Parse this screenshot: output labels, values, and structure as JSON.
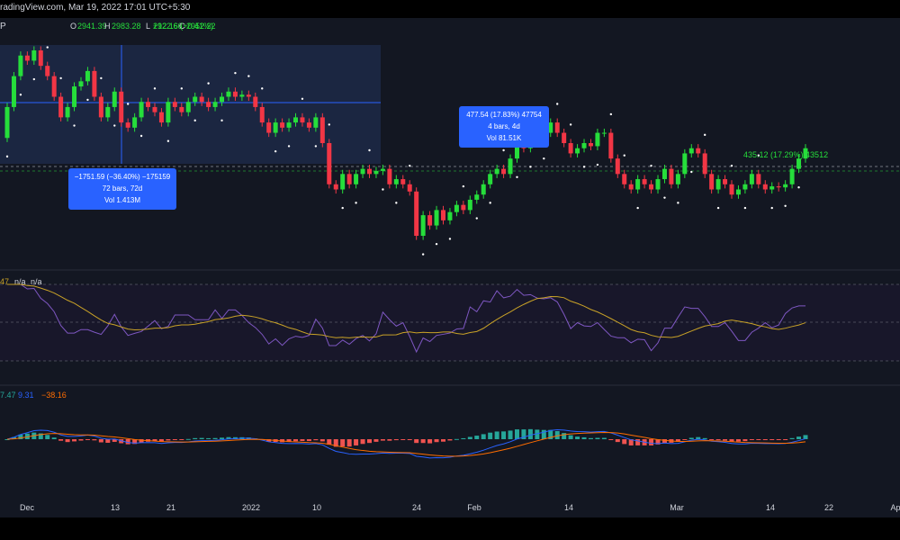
{
  "header": {
    "source": "radingView.com, Mar 19, 2022 17:01 UTC+5:30",
    "symbol_fragment": "P",
    "ohlc": [
      {
        "key": "O",
        "value": "2941.39"
      },
      {
        "key": "H",
        "value": "2983.28"
      },
      {
        "key": "L",
        "value": "2922.66"
      },
      {
        "key": "C",
        "value": "2952.22"
      }
    ],
    "change": "+12.16 (+0.41%)"
  },
  "colors": {
    "background": "#131722",
    "up": "#26de3b",
    "down": "#f23645",
    "rsi_line": "#7e57c2",
    "rsi_ma": "#c9a227",
    "macd_line": "#2962ff",
    "signal_line": "#ff6d00",
    "measure_box": "#2962ff"
  },
  "measurements": [
    {
      "line1": "−1751.59 (−36.40%) −175159",
      "line2": "72 bars, 72d",
      "line3": "Vol 1.413M"
    },
    {
      "line1": "477.54 (17.83%) 47754",
      "line2": "4 bars, 4d",
      "line3": "Vol 81.51K"
    },
    {
      "line1": "435.12 (17.29%) 43512",
      "line2": "",
      "line3": ""
    }
  ],
  "rsi_legend": {
    "value": "47",
    "na1": "n/a",
    "na2": "n/a"
  },
  "macd_legend": {
    "hist": "7.47",
    "macd": "9.31",
    "signal": "−38.16"
  },
  "chart_data": {
    "type": "candlestick",
    "x_tick_labels": [
      "Dec",
      "13",
      "21",
      "2022",
      "10",
      "24",
      "Feb",
      "14",
      "Mar",
      "14",
      "22",
      "Ap"
    ],
    "candles": [
      [
        2900,
        3200
      ],
      [
        3200,
        3500
      ],
      [
        3500,
        3700
      ],
      [
        3700,
        3650
      ],
      [
        3650,
        3750
      ],
      [
        3750,
        3600
      ],
      [
        3600,
        3500
      ],
      [
        3500,
        3300
      ],
      [
        3300,
        3100
      ],
      [
        3100,
        3200
      ],
      [
        3200,
        3400
      ],
      [
        3400,
        3450
      ],
      [
        3450,
        3550
      ],
      [
        3550,
        3300
      ],
      [
        3300,
        3100
      ],
      [
        3100,
        3200
      ],
      [
        3200,
        3350
      ],
      [
        3350,
        3050
      ],
      [
        3050,
        3000
      ],
      [
        3000,
        3100
      ],
      [
        3100,
        3250
      ],
      [
        3250,
        3200
      ],
      [
        3200,
        3150
      ],
      [
        3150,
        3050
      ],
      [
        3050,
        3250
      ],
      [
        3250,
        3200
      ],
      [
        3200,
        3150
      ],
      [
        3150,
        3250
      ],
      [
        3250,
        3300
      ],
      [
        3300,
        3250
      ],
      [
        3250,
        3200
      ],
      [
        3200,
        3250
      ],
      [
        3250,
        3300
      ],
      [
        3300,
        3350
      ],
      [
        3350,
        3300
      ],
      [
        3300,
        3320
      ],
      [
        3320,
        3300
      ],
      [
        3300,
        3200
      ],
      [
        3200,
        3050
      ],
      [
        3050,
        2950
      ],
      [
        2950,
        3050
      ],
      [
        3050,
        3000
      ],
      [
        3000,
        3050
      ],
      [
        3050,
        3100
      ],
      [
        3100,
        3050
      ],
      [
        3050,
        3000
      ],
      [
        3000,
        3100
      ],
      [
        3100,
        2850
      ],
      [
        2850,
        2450
      ],
      [
        2450,
        2400
      ],
      [
        2400,
        2550
      ],
      [
        2550,
        2450
      ],
      [
        2450,
        2550
      ],
      [
        2550,
        2600
      ],
      [
        2600,
        2550
      ],
      [
        2550,
        2580
      ],
      [
        2580,
        2600
      ],
      [
        2600,
        2450
      ],
      [
        2450,
        2500
      ],
      [
        2500,
        2450
      ],
      [
        2450,
        2380
      ],
      [
        2380,
        1950
      ],
      [
        1950,
        2150
      ],
      [
        2150,
        2050
      ],
      [
        2050,
        2200
      ],
      [
        2200,
        2100
      ],
      [
        2100,
        2180
      ],
      [
        2180,
        2250
      ],
      [
        2250,
        2200
      ],
      [
        2200,
        2300
      ],
      [
        2300,
        2350
      ],
      [
        2350,
        2450
      ],
      [
        2450,
        2550
      ],
      [
        2550,
        2600
      ],
      [
        2600,
        2550
      ],
      [
        2550,
        2700
      ],
      [
        2700,
        2850
      ],
      [
        2850,
        2800
      ],
      [
        2800,
        2900
      ],
      [
        2900,
        2880
      ],
      [
        2880,
        2950
      ],
      [
        2950,
        3050
      ],
      [
        3050,
        2950
      ],
      [
        2950,
        2850
      ],
      [
        2850,
        2750
      ],
      [
        2750,
        2800
      ],
      [
        2800,
        2850
      ],
      [
        2850,
        2820
      ],
      [
        2820,
        2950
      ],
      [
        2950,
        2950
      ],
      [
        2950,
        2700
      ],
      [
        2700,
        2550
      ],
      [
        2550,
        2450
      ],
      [
        2450,
        2400
      ],
      [
        2400,
        2500
      ],
      [
        2500,
        2450
      ],
      [
        2450,
        2400
      ],
      [
        2400,
        2500
      ],
      [
        2500,
        2600
      ],
      [
        2600,
        2450
      ],
      [
        2450,
        2550
      ],
      [
        2550,
        2750
      ],
      [
        2750,
        2800
      ],
      [
        2800,
        2750
      ],
      [
        2750,
        2550
      ],
      [
        2550,
        2400
      ],
      [
        2400,
        2500
      ],
      [
        2500,
        2450
      ],
      [
        2450,
        2350
      ],
      [
        2350,
        2400
      ],
      [
        2400,
        2450
      ],
      [
        2450,
        2550
      ],
      [
        2550,
        2450
      ],
      [
        2450,
        2400
      ],
      [
        2400,
        2430
      ],
      [
        2430,
        2420
      ],
      [
        2420,
        2450
      ],
      [
        2450,
        2600
      ],
      [
        2600,
        2700
      ],
      [
        2700,
        2800
      ]
    ]
  }
}
